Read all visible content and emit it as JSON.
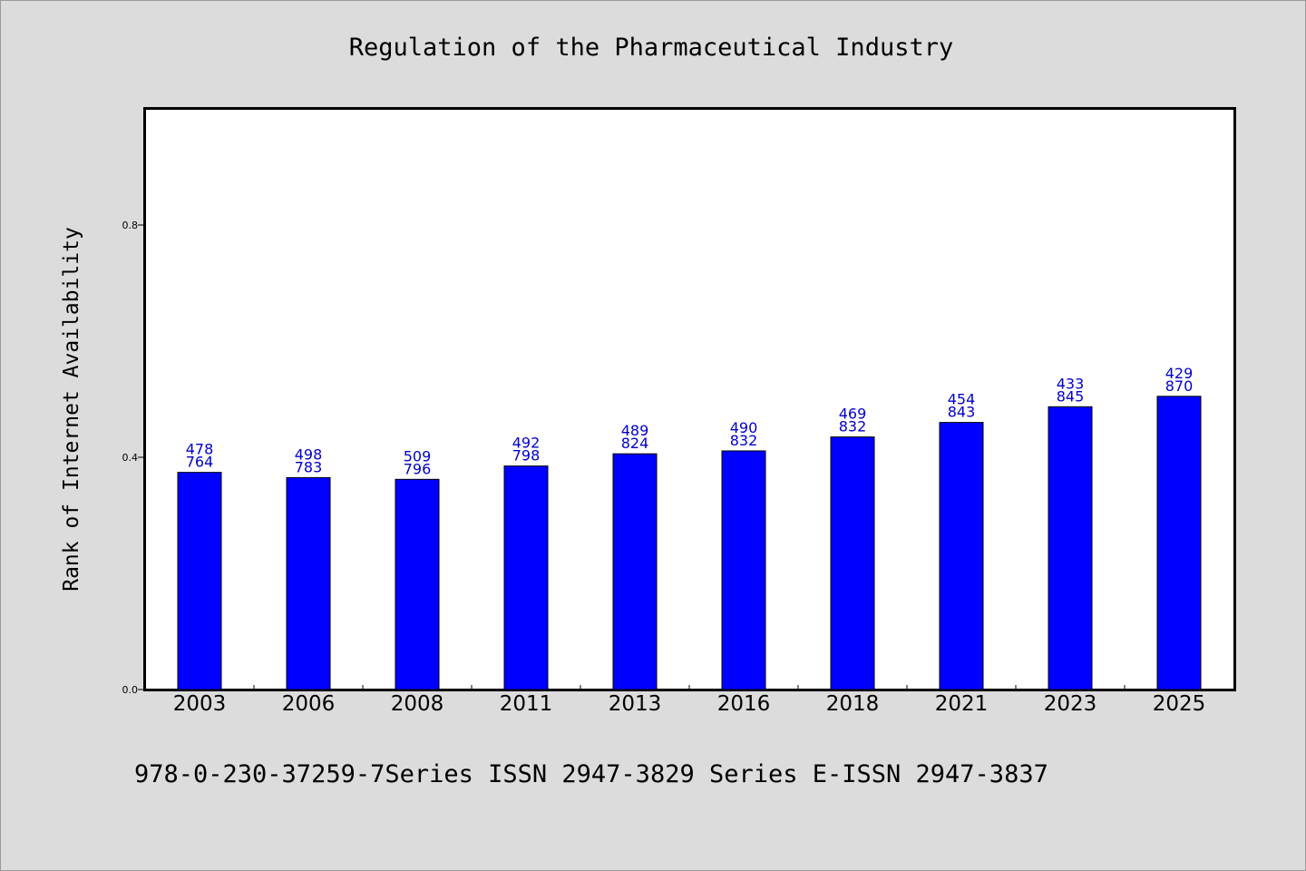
{
  "chart_data": {
    "type": "bar",
    "title": "Regulation of the Pharmaceutical Industry",
    "xlabel": "",
    "ylabel": "Rank of Internet Availability",
    "ylim": [
      0,
      1.0
    ],
    "yticks": [
      "0.0",
      "0.4",
      "0.8"
    ],
    "ytick_values": [
      0.0,
      0.4,
      0.8
    ],
    "categories": [
      "2003",
      "2006",
      "2008",
      "2011",
      "2013",
      "2016",
      "2018",
      "2021",
      "2023",
      "2025"
    ],
    "values": [
      0.374,
      0.365,
      0.362,
      0.385,
      0.406,
      0.411,
      0.435,
      0.46,
      0.487,
      0.505
    ],
    "bar_labels_top": [
      "478",
      "498",
      "509",
      "492",
      "489",
      "490",
      "469",
      "454",
      "433",
      "429"
    ],
    "bar_labels_bottom": [
      "764",
      "783",
      "796",
      "798",
      "824",
      "832",
      "832",
      "843",
      "845",
      "870"
    ],
    "bar_color": "#0000ff",
    "label_color": "#0000cc",
    "grid": false,
    "legend": "none"
  },
  "footer": {
    "text": "978-0-230-37259-7Series ISSN 2947-3829 Series E-ISSN 2947-3837"
  },
  "colors": {
    "background": "#dcdcdc",
    "plot_background": "#ffffff"
  }
}
